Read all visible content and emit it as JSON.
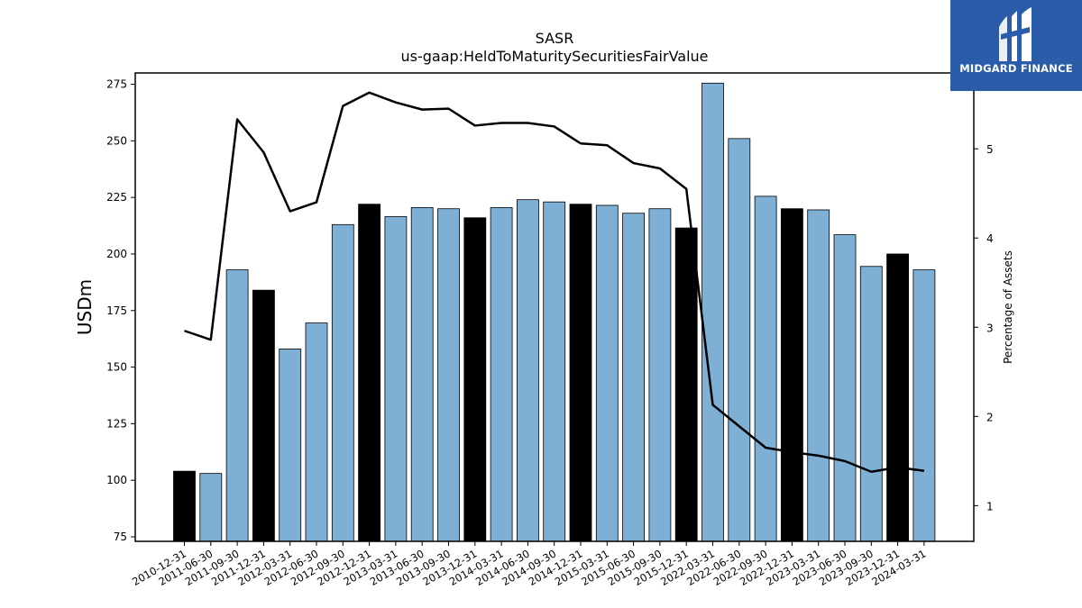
{
  "logo": {
    "text": "MIDGARD FINANCE",
    "bg_color": "#2b5caa"
  },
  "chart_data": {
    "type": "bar",
    "title": "SASR",
    "subtitle": "us-gaap:HeldToMaturitySecuritiesFairValue",
    "ylabel": "USDm",
    "y2label": "Percentage of Assets",
    "ylim": [
      73,
      280
    ],
    "y2lim": [
      0.6,
      5.85
    ],
    "yticks": [
      75,
      100,
      125,
      150,
      175,
      200,
      225,
      250,
      275
    ],
    "y2ticks": [
      1,
      2,
      3,
      4,
      5
    ],
    "bar_color": "#7eb0d5",
    "highlight_color": "#000000",
    "line_color": "#000000",
    "grid": false,
    "categories": [
      "2010-12-31",
      "2011-06-30",
      "2011-09-30",
      "2011-12-31",
      "2012-03-31",
      "2012-06-30",
      "2012-09-30",
      "2012-12-31",
      "2013-03-31",
      "2013-06-30",
      "2013-09-30",
      "2013-12-31",
      "2014-03-31",
      "2014-06-30",
      "2014-09-30",
      "2014-12-31",
      "2015-03-31",
      "2015-06-30",
      "2015-09-30",
      "2015-12-31",
      "2022-03-31",
      "2022-06-30",
      "2022-09-30",
      "2022-12-31",
      "2023-03-31",
      "2023-06-30",
      "2023-09-30",
      "2023-12-31",
      "2024-03-31"
    ],
    "series": [
      {
        "type": "bar",
        "values": [
          104,
          103,
          193,
          184,
          158,
          169.5,
          213,
          222,
          216.5,
          220.5,
          220,
          216,
          220.5,
          224,
          223,
          222,
          221.5,
          218,
          220,
          211.5,
          275.5,
          251,
          225.5,
          220,
          219.5,
          208.5,
          194.5,
          200,
          193
        ],
        "highlight": [
          true,
          false,
          false,
          true,
          false,
          false,
          false,
          true,
          false,
          false,
          false,
          true,
          false,
          false,
          false,
          true,
          false,
          false,
          false,
          true,
          false,
          false,
          false,
          true,
          false,
          false,
          false,
          true,
          false
        ]
      },
      {
        "type": "line",
        "axis": "right",
        "values": [
          2.96,
          2.86,
          5.33,
          4.96,
          4.3,
          4.4,
          5.48,
          5.63,
          5.52,
          5.44,
          5.45,
          5.26,
          5.29,
          5.29,
          5.25,
          5.06,
          5.04,
          4.84,
          4.78,
          4.55,
          2.13,
          1.89,
          1.65,
          1.6,
          1.56,
          1.5,
          1.38,
          1.43,
          1.39
        ]
      }
    ]
  }
}
